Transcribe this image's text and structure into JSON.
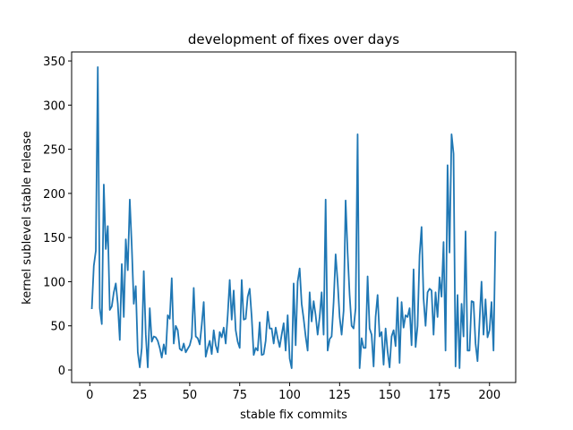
{
  "chart_data": {
    "type": "line",
    "title": "development of fixes over days",
    "xlabel": "stable fix commits",
    "ylabel": "kernel sublevel stable release",
    "color": "#1f77b4",
    "xlim": [
      -9.1,
      213.1
    ],
    "ylim": [
      -14.2,
      360.2
    ],
    "xticks": [
      0,
      25,
      50,
      75,
      100,
      125,
      150,
      175,
      200
    ],
    "yticks": [
      0,
      50,
      100,
      150,
      200,
      250,
      300,
      350
    ],
    "x": [
      1,
      2,
      3,
      4,
      5,
      6,
      7,
      8,
      9,
      10,
      11,
      12,
      13,
      14,
      15,
      16,
      17,
      18,
      19,
      20,
      21,
      22,
      23,
      24,
      25,
      26,
      27,
      28,
      29,
      30,
      31,
      32,
      33,
      34,
      35,
      36,
      37,
      38,
      39,
      40,
      41,
      42,
      43,
      44,
      45,
      46,
      47,
      48,
      49,
      50,
      51,
      52,
      53,
      54,
      55,
      56,
      57,
      58,
      59,
      60,
      61,
      62,
      63,
      64,
      65,
      66,
      67,
      68,
      69,
      70,
      71,
      72,
      73,
      74,
      75,
      76,
      77,
      78,
      79,
      80,
      81,
      82,
      83,
      84,
      85,
      86,
      87,
      88,
      89,
      90,
      91,
      92,
      93,
      94,
      95,
      96,
      97,
      98,
      99,
      100,
      101,
      102,
      103,
      104,
      105,
      106,
      107,
      108,
      109,
      110,
      111,
      112,
      113,
      114,
      115,
      116,
      117,
      118,
      119,
      120,
      121,
      122,
      123,
      124,
      125,
      126,
      127,
      128,
      129,
      130,
      131,
      132,
      133,
      134,
      135,
      136,
      137,
      138,
      139,
      140,
      141,
      142,
      143,
      144,
      145,
      146,
      147,
      148,
      149,
      150,
      151,
      152,
      153,
      154,
      155,
      156,
      157,
      158,
      159,
      160,
      161,
      162,
      163,
      164,
      165,
      166,
      167,
      168,
      169,
      170,
      171,
      172,
      173,
      174,
      175,
      176,
      177,
      178,
      179,
      180,
      181,
      182,
      183,
      184,
      185,
      186,
      187,
      188,
      189,
      190,
      191,
      192,
      193,
      194,
      195,
      196,
      197,
      198,
      199,
      200,
      201,
      202,
      203
    ],
    "values": [
      69,
      118,
      135,
      343,
      70,
      52,
      210,
      137,
      163,
      68,
      72,
      88,
      98,
      75,
      34,
      120,
      60,
      148,
      113,
      193,
      140,
      75,
      95,
      20,
      3,
      25,
      112,
      40,
      3,
      70,
      32,
      38,
      37,
      33,
      25,
      14,
      29,
      18,
      62,
      58,
      104,
      30,
      50,
      45,
      24,
      22,
      30,
      20,
      24,
      28,
      37,
      93,
      38,
      36,
      29,
      51,
      77,
      15,
      25,
      33,
      18,
      45,
      28,
      20,
      43,
      37,
      48,
      30,
      62,
      102,
      57,
      90,
      45,
      32,
      25,
      102,
      57,
      58,
      83,
      92,
      60,
      17,
      25,
      22,
      54,
      17,
      18,
      33,
      66,
      47,
      47,
      30,
      48,
      36,
      26,
      40,
      53,
      22,
      62,
      13,
      2,
      98,
      28,
      100,
      115,
      75,
      58,
      38,
      22,
      88,
      55,
      78,
      62,
      40,
      60,
      88,
      40,
      193,
      22,
      35,
      38,
      77,
      131,
      100,
      60,
      40,
      67,
      192,
      133,
      85,
      50,
      47,
      70,
      267,
      2,
      36,
      25,
      25,
      106,
      47,
      40,
      4,
      60,
      85,
      38,
      43,
      6,
      47,
      21,
      3,
      38,
      45,
      27,
      82,
      8,
      77,
      48,
      62,
      60,
      70,
      28,
      114,
      26,
      50,
      130,
      162,
      81,
      50,
      88,
      92,
      90,
      40,
      88,
      60,
      105,
      83,
      145,
      22,
      232,
      133,
      267,
      245,
      4,
      85,
      2,
      75,
      38,
      157,
      22,
      22,
      78,
      77,
      30,
      10,
      55,
      100,
      40,
      80,
      37,
      45,
      77,
      22,
      157
    ]
  }
}
